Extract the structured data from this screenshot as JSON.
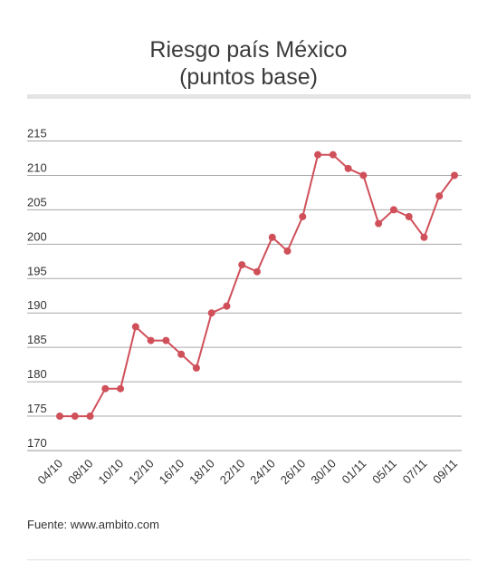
{
  "chart_data": {
    "type": "line",
    "title_line1": "Riesgo país México",
    "title_line2": "(puntos base)",
    "yticks": [
      215,
      210,
      205,
      200,
      195,
      190,
      185,
      180,
      175,
      170
    ],
    "ylim": [
      170,
      215
    ],
    "xtick_labels": [
      "04/10",
      "08/10",
      "10/10",
      "12/10",
      "16/10",
      "18/10",
      "22/10",
      "24/10",
      "26/10",
      "30/10",
      "01/11",
      "05/11",
      "07/11",
      "09/11"
    ],
    "xtick_indices": [
      0,
      2,
      4,
      6,
      8,
      10,
      12,
      14,
      16,
      18,
      20,
      22,
      24,
      26
    ],
    "series": [
      {
        "values": [
          175,
          175,
          175,
          179,
          179,
          188,
          186,
          186,
          184,
          182,
          190,
          191,
          197,
          196,
          201,
          199,
          204,
          213,
          213,
          211,
          210,
          203,
          205,
          204,
          201,
          207,
          210
        ]
      }
    ],
    "line_color": "#d0505a",
    "grid": true
  },
  "source": "Fuente: www.ambito.com"
}
